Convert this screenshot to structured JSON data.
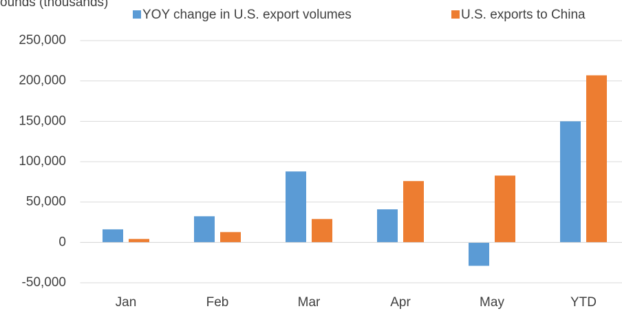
{
  "chart_data": {
    "type": "bar",
    "y_axis_label": "ounds (thousands)",
    "categories": [
      "Jan",
      "Feb",
      "Mar",
      "Apr",
      "May",
      "YTD"
    ],
    "series": [
      {
        "name": "YOY change in U.S. export volumes",
        "color": "#5b9bd5",
        "values": [
          16200,
          32400,
          87900,
          41000,
          -29000,
          150000
        ]
      },
      {
        "name": "U.S. exports to China",
        "color": "#ed7d31",
        "values": [
          4300,
          12800,
          29000,
          76000,
          82800,
          207000
        ]
      }
    ],
    "ylim": [
      -50000,
      250000
    ],
    "yticks": [
      {
        "value": -50000,
        "label": "-50,000"
      },
      0,
      {
        "value": 50000,
        "label": "50,000"
      },
      {
        "value": 100000,
        "label": "100,000"
      },
      {
        "value": 150000,
        "label": "150,000"
      },
      {
        "value": 200000,
        "label": "200,000"
      },
      {
        "value": 250000,
        "label": "250,000"
      }
    ],
    "grid": true,
    "legend": "top"
  }
}
